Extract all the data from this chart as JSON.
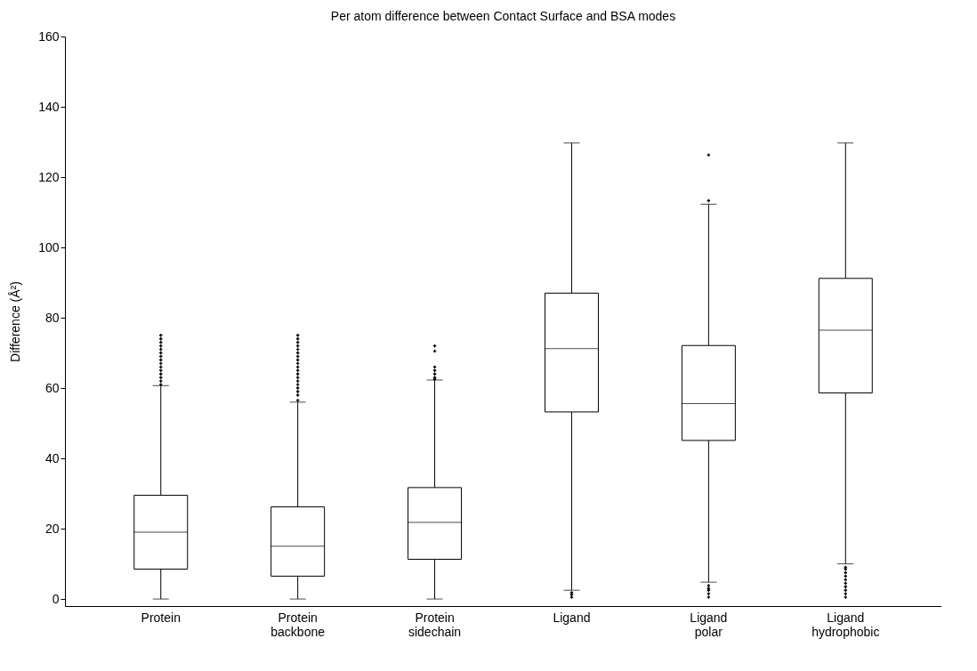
{
  "chart_data": {
    "type": "box",
    "title": "Per atom difference between Contact Surface and BSA modes",
    "ylabel": "Difference (Å²)",
    "categories": [
      "Protein",
      "Protein\nbackbone",
      "Protein\nsidechain",
      "Ligand",
      "Ligand\npolar",
      "Ligand\nhydrophobic"
    ],
    "boxes": [
      {
        "low": 0,
        "q1": 8.5,
        "median": 19,
        "q3": 29.5,
        "high": 60.7,
        "outliers": [
          61,
          62,
          63,
          64,
          65,
          66,
          67,
          68,
          69,
          70,
          71,
          72,
          73,
          74,
          75
        ]
      },
      {
        "low": 0,
        "q1": 6.5,
        "median": 15,
        "q3": 26.2,
        "high": 56,
        "outliers": [
          56.5,
          58,
          59,
          60,
          61,
          62,
          63,
          64,
          65,
          66,
          67,
          68,
          69,
          70,
          71,
          72,
          73,
          74,
          75
        ]
      },
      {
        "low": 0,
        "q1": 11.3,
        "median": 21.8,
        "q3": 31.7,
        "high": 62.3,
        "outliers": [
          62.5,
          63,
          64,
          65,
          66,
          70.5,
          72
        ]
      },
      {
        "low": 2.5,
        "q1": 53.2,
        "median": 71.2,
        "q3": 87,
        "high": 129.7,
        "outliers": [
          0.5,
          1.2,
          1.8
        ]
      },
      {
        "low": 4.8,
        "q1": 45.1,
        "median": 55.6,
        "q3": 72.1,
        "high": 112.3,
        "outliers": [
          0.5,
          1.5,
          2.5,
          3,
          3.8,
          113.3,
          126.3
        ]
      },
      {
        "low": 10,
        "q1": 58.6,
        "median": 76.5,
        "q3": 91.2,
        "high": 129.7,
        "outliers": [
          0.5,
          1.5,
          2.5,
          3.5,
          4.5,
          5.5,
          6.5,
          7.5,
          8.5,
          9
        ]
      }
    ],
    "ylim": [
      -2,
      160
    ],
    "yticks": [
      0,
      20,
      40,
      60,
      80,
      100,
      120,
      140,
      160
    ],
    "color": "#000000"
  }
}
